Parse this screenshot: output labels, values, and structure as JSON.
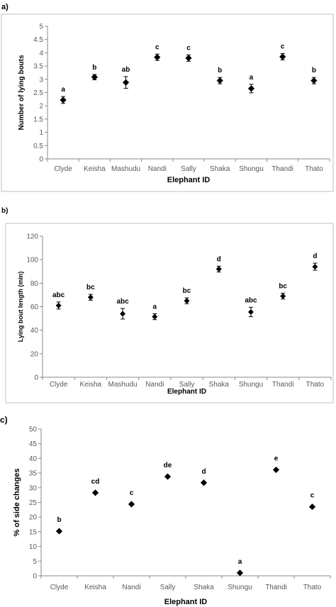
{
  "chart_data": [
    {
      "panel_label": "a)",
      "type": "scatter",
      "xlabel": "Elephant ID",
      "ylabel": "Number of lying bouts",
      "ylim": [
        0,
        5
      ],
      "yticks": [
        "0",
        "0.5",
        "1",
        "1.5",
        "2",
        "2.5",
        "3",
        "3.5",
        "4",
        "4.5",
        "5"
      ],
      "categories": [
        "Clyde",
        "Keisha",
        "Mashudu",
        "Nandi",
        "Sally",
        "Shaka",
        "Shungu",
        "Thandi",
        "Thato"
      ],
      "values": [
        2.22,
        3.08,
        2.88,
        3.83,
        3.8,
        2.95,
        2.65,
        3.85,
        2.95
      ],
      "errors": [
        0.13,
        0.1,
        0.22,
        0.12,
        0.12,
        0.12,
        0.16,
        0.12,
        0.12
      ],
      "letters": [
        "a",
        "b",
        "ab",
        "c",
        "c",
        "b",
        "a",
        "c",
        "b"
      ],
      "grid": false,
      "marker": "diamond"
    },
    {
      "panel_label": "b)",
      "type": "scatter",
      "xlabel": "Elephant ID",
      "ylabel": "Lying bout length (min)",
      "ylim": [
        0,
        120
      ],
      "yticks": [
        "0",
        "20",
        "40",
        "60",
        "80",
        "100",
        "120"
      ],
      "categories": [
        "Clyde",
        "Keisha",
        "Mashudu",
        "Nandi",
        "Sally",
        "Shaka",
        "Shungu",
        "Thandi",
        "Thato"
      ],
      "values": [
        61,
        68,
        54,
        51.5,
        65,
        92,
        55.5,
        69,
        94
      ],
      "errors": [
        3,
        2.5,
        4.5,
        2.5,
        2.5,
        2.5,
        4,
        2.5,
        3
      ],
      "letters": [
        "abc",
        "bc",
        "abc",
        "a",
        "bc",
        "d",
        "abc",
        "bc",
        "d"
      ],
      "grid": false,
      "marker": "diamond"
    },
    {
      "panel_label": "c)",
      "type": "scatter",
      "xlabel": "Elephant ID",
      "ylabel": "% of side changes",
      "ylim": [
        0,
        50
      ],
      "yticks": [
        "0",
        "5",
        "10",
        "15",
        "20",
        "25",
        "30",
        "35",
        "40",
        "45",
        "50"
      ],
      "categories": [
        "Clyde",
        "Keisha",
        "Nandi",
        "Sally",
        "Shaka",
        "Shungu",
        "Thandi",
        "Thato"
      ],
      "values": [
        15.2,
        28.3,
        24.4,
        33.8,
        31.7,
        1.0,
        36.1,
        23.5
      ],
      "letters": [
        "b",
        "cd",
        "c",
        "de",
        "d",
        "a",
        "e",
        "c"
      ],
      "grid": false,
      "marker": "diamond"
    }
  ]
}
